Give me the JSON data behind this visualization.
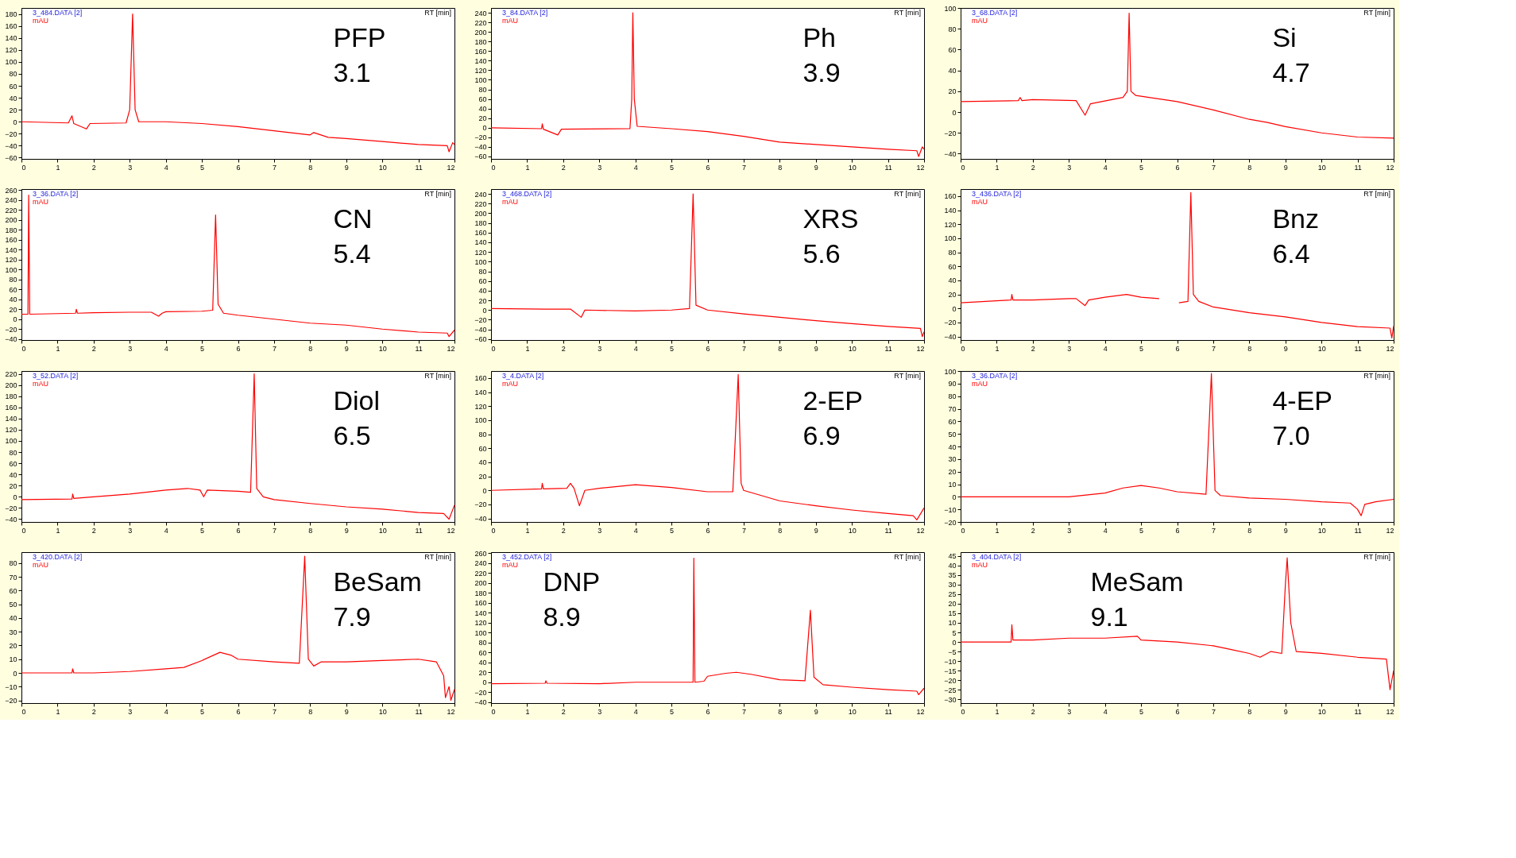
{
  "chart_data": [
    {
      "type": "line",
      "title": "3_484.DATA [2]",
      "ylabel": "mAU",
      "xlabel": "RT [min]",
      "annotations": [
        "PFP",
        "3.1"
      ],
      "xlim": [
        0,
        12
      ],
      "xticks": [
        0,
        1,
        2,
        3,
        4,
        5,
        6,
        7,
        8,
        9,
        10,
        11,
        12
      ],
      "ylim": [
        -62,
        190
      ],
      "yticks": [
        -60,
        -40,
        -20,
        0,
        20,
        40,
        60,
        80,
        100,
        120,
        140,
        160,
        180
      ],
      "grid": false,
      "series": [
        {
          "color": "#ff0000",
          "x": [
            0,
            1.3,
            1.4,
            1.45,
            1.8,
            1.9,
            2.9,
            3.0,
            3.08,
            3.15,
            3.25,
            4,
            5,
            6,
            7,
            8,
            8.1,
            8.5,
            9,
            10,
            11,
            11.8,
            11.85,
            11.95,
            12
          ],
          "values": [
            0,
            -2,
            10,
            -3,
            -12,
            -3,
            -2,
            20,
            180,
            20,
            0,
            0,
            -3,
            -8,
            -15,
            -22,
            -18,
            -26,
            -28,
            -33,
            -38,
            -40,
            -50,
            -35,
            -38
          ]
        }
      ]
    },
    {
      "type": "line",
      "title": "3_84.DATA [2]",
      "ylabel": "mAU",
      "xlabel": "RT [min]",
      "annotations": [
        "Ph",
        "3.9"
      ],
      "xlim": [
        0,
        12
      ],
      "xticks": [
        0,
        1,
        2,
        3,
        4,
        5,
        6,
        7,
        8,
        9,
        10,
        11,
        12
      ],
      "ylim": [
        -65,
        250
      ],
      "yticks": [
        -60,
        -40,
        -20,
        0,
        20,
        40,
        60,
        80,
        100,
        120,
        140,
        160,
        180,
        200,
        220,
        240
      ],
      "grid": false,
      "series": [
        {
          "color": "#ff0000",
          "x": [
            0,
            1.4,
            1.42,
            1.45,
            1.85,
            1.95,
            3.85,
            3.9,
            3.93,
            3.97,
            4.05,
            5,
            6,
            7,
            8,
            9,
            10,
            11,
            11.8,
            11.85,
            11.95,
            12
          ],
          "values": [
            0,
            -2,
            8,
            -3,
            -15,
            -3,
            -2,
            60,
            240,
            60,
            3,
            -2,
            -8,
            -18,
            -30,
            -35,
            -40,
            -45,
            -48,
            -60,
            -40,
            -45
          ]
        }
      ]
    },
    {
      "type": "line",
      "title": "3_68.DATA [2]",
      "ylabel": "mAU",
      "xlabel": "RT [min]",
      "annotations": [
        "Si",
        "4.7"
      ],
      "xlim": [
        0,
        12
      ],
      "xticks": [
        0,
        1,
        2,
        3,
        4,
        5,
        6,
        7,
        8,
        9,
        10,
        11,
        12
      ],
      "ylim": [
        -45,
        100
      ],
      "yticks": [
        -40,
        -20,
        0,
        20,
        40,
        60,
        80,
        100
      ],
      "grid": false,
      "series": [
        {
          "color": "#ff0000",
          "x": [
            0,
            1.6,
            1.65,
            1.7,
            2,
            3.2,
            3.45,
            3.6,
            4.5,
            4.62,
            4.67,
            4.72,
            4.85,
            6,
            7,
            8,
            8.5,
            9,
            10,
            11,
            12
          ],
          "values": [
            10,
            11,
            14,
            11,
            12,
            11,
            -3,
            8,
            14,
            20,
            95,
            20,
            16,
            10,
            2,
            -7,
            -10,
            -14,
            -20,
            -24,
            -25
          ]
        }
      ]
    },
    {
      "type": "line",
      "title": "3_36.DATA [2]",
      "ylabel": "mAU",
      "xlabel": "RT [min]",
      "annotations": [
        "CN",
        "5.4"
      ],
      "xlim": [
        0,
        12
      ],
      "xticks": [
        0,
        1,
        2,
        3,
        4,
        5,
        6,
        7,
        8,
        9,
        10,
        11,
        12
      ],
      "ylim": [
        -42,
        262
      ],
      "yticks": [
        -40,
        -20,
        0,
        20,
        40,
        60,
        80,
        100,
        120,
        140,
        160,
        180,
        200,
        220,
        240,
        260
      ],
      "grid": false,
      "series": [
        {
          "color": "#ff0000",
          "x": [
            0,
            0.18,
            0.2,
            0.23,
            1.5,
            1.52,
            1.55,
            2,
            3,
            3.6,
            3.8,
            3.9,
            4,
            5,
            5.3,
            5.38,
            5.45,
            5.6,
            6,
            7,
            8,
            9,
            10,
            11,
            11.8,
            11.85,
            12
          ],
          "values": [
            10,
            10,
            250,
            10,
            12,
            20,
            12,
            13,
            14,
            14,
            6,
            12,
            15,
            16,
            18,
            210,
            30,
            12,
            8,
            0,
            -8,
            -12,
            -20,
            -26,
            -28,
            -35,
            -22
          ]
        }
      ]
    },
    {
      "type": "line",
      "title": "3_468.DATA [2]",
      "ylabel": "mAU",
      "xlabel": "RT [min]",
      "annotations": [
        "XRS",
        "5.6"
      ],
      "xlim": [
        0,
        12
      ],
      "xticks": [
        0,
        1,
        2,
        3,
        4,
        5,
        6,
        7,
        8,
        9,
        10,
        11,
        12
      ],
      "ylim": [
        -62,
        250
      ],
      "yticks": [
        -60,
        -40,
        -20,
        0,
        20,
        40,
        60,
        80,
        100,
        120,
        140,
        160,
        180,
        200,
        220,
        240
      ],
      "grid": false,
      "series": [
        {
          "color": "#ff0000",
          "x": [
            0,
            1.5,
            1.8,
            2.2,
            2.5,
            2.6,
            4,
            5,
            5.5,
            5.6,
            5.68,
            6,
            7,
            8,
            9,
            10,
            11,
            11.9,
            11.95,
            12
          ],
          "values": [
            3,
            2,
            2,
            2,
            -15,
            0,
            -2,
            0,
            3,
            240,
            10,
            0,
            -8,
            -15,
            -22,
            -28,
            -34,
            -38,
            -55,
            -45
          ]
        }
      ]
    },
    {
      "type": "line",
      "title": "3_436.DATA [2]",
      "ylabel": "mAU",
      "xlabel": "RT [min]",
      "annotations": [
        "Bnz",
        "6.4"
      ],
      "xlim": [
        0,
        12
      ],
      "xticks": [
        0,
        1,
        2,
        3,
        4,
        5,
        6,
        7,
        8,
        9,
        10,
        11,
        12
      ],
      "ylim": [
        -45,
        170
      ],
      "yticks": [
        -40,
        -20,
        0,
        20,
        40,
        60,
        80,
        100,
        120,
        140,
        160
      ],
      "grid": false,
      "series": [
        {
          "color": "#ff0000",
          "x": [
            0,
            1.4,
            1.42,
            1.45,
            2,
            3,
            3.2,
            3.45,
            3.55,
            4,
            4.6,
            5,
            5.5,
            5.8,
            6.05,
            6.3,
            6.38,
            6.45,
            6.6,
            7,
            8,
            9,
            10,
            11,
            11.9,
            11.95,
            12
          ],
          "values": [
            8,
            12,
            20,
            12,
            12,
            14,
            14,
            4,
            12,
            16,
            20,
            16,
            14,
            null,
            8,
            10,
            165,
            20,
            10,
            2,
            -6,
            -12,
            -20,
            -26,
            -28,
            -42,
            -25
          ]
        }
      ]
    },
    {
      "type": "line",
      "title": "3_52.DATA [2]",
      "ylabel": "mAU",
      "xlabel": "RT [min]",
      "annotations": [
        "Diol",
        "6.5"
      ],
      "xlim": [
        0,
        12
      ],
      "xticks": [
        0,
        1,
        2,
        3,
        4,
        5,
        6,
        7,
        8,
        9,
        10,
        11,
        12
      ],
      "ylim": [
        -45,
        225
      ],
      "yticks": [
        -40,
        -20,
        0,
        20,
        40,
        60,
        80,
        100,
        120,
        140,
        160,
        180,
        200,
        220
      ],
      "grid": false,
      "series": [
        {
          "color": "#ff0000",
          "x": [
            0,
            1.4,
            1.42,
            1.45,
            2,
            3,
            4,
            4.6,
            4.95,
            5.05,
            5.15,
            6,
            6.35,
            6.45,
            6.52,
            6.7,
            7,
            8,
            9,
            10,
            11,
            11.7,
            11.85,
            12
          ],
          "values": [
            -5,
            -4,
            5,
            -3,
            0,
            5,
            12,
            15,
            12,
            0,
            12,
            10,
            8,
            220,
            15,
            0,
            -5,
            -12,
            -18,
            -22,
            -28,
            -30,
            -40,
            -15
          ]
        }
      ]
    },
    {
      "type": "line",
      "title": "3_4.DATA [2]",
      "ylabel": "mAU",
      "xlabel": "RT [min]",
      "annotations": [
        "2-EP",
        "6.9"
      ],
      "xlim": [
        0,
        12
      ],
      "xticks": [
        0,
        1,
        2,
        3,
        4,
        5,
        6,
        7,
        8,
        9,
        10,
        11,
        12
      ],
      "ylim": [
        -45,
        170
      ],
      "yticks": [
        -40,
        -20,
        0,
        20,
        40,
        60,
        80,
        100,
        120,
        140,
        160
      ],
      "grid": false,
      "series": [
        {
          "color": "#ff0000",
          "x": [
            0,
            1.4,
            1.42,
            1.45,
            2.1,
            2.2,
            2.3,
            2.45,
            2.6,
            3,
            4,
            5,
            6,
            6.7,
            6.85,
            6.93,
            7,
            8,
            9,
            10,
            11,
            11.7,
            11.8,
            12
          ],
          "values": [
            0,
            2,
            10,
            2,
            3,
            10,
            3,
            -22,
            0,
            3,
            8,
            4,
            -2,
            -2,
            165,
            10,
            0,
            -15,
            -22,
            -28,
            -33,
            -36,
            -42,
            -25
          ]
        }
      ]
    },
    {
      "type": "line",
      "title": "3_36.DATA [2]",
      "ylabel": "mAU",
      "xlabel": "RT [min]",
      "annotations": [
        "4-EP",
        "7.0"
      ],
      "xlim": [
        0,
        12
      ],
      "xticks": [
        0,
        1,
        2,
        3,
        4,
        5,
        6,
        7,
        8,
        9,
        10,
        11,
        12
      ],
      "ylim": [
        -20,
        100
      ],
      "yticks": [
        -20,
        -10,
        0,
        10,
        20,
        30,
        40,
        50,
        60,
        70,
        80,
        90,
        100
      ],
      "grid": false,
      "series": [
        {
          "color": "#ff0000",
          "x": [
            0,
            1,
            2,
            3,
            4,
            4.5,
            5,
            5.5,
            6,
            6.8,
            6.95,
            7.05,
            7.2,
            8,
            9,
            10,
            10.8,
            11,
            11.1,
            11.2,
            11.5,
            12
          ],
          "values": [
            0,
            0,
            0,
            0,
            3,
            7,
            9,
            7,
            4,
            2,
            98,
            5,
            1,
            -1,
            -2,
            -4,
            -5,
            -10,
            -15,
            -6,
            -4,
            -2
          ]
        }
      ]
    },
    {
      "type": "line",
      "title": "3_420.DATA [2]",
      "ylabel": "mAU",
      "xlabel": "RT [min]",
      "annotations": [
        "BeSam",
        "7.9"
      ],
      "xlim": [
        0,
        12
      ],
      "xticks": [
        0,
        1,
        2,
        3,
        4,
        5,
        6,
        7,
        8,
        9,
        10,
        11,
        12
      ],
      "ylim": [
        -22,
        88
      ],
      "yticks": [
        -20,
        -10,
        0,
        10,
        20,
        30,
        40,
        50,
        60,
        70,
        80
      ],
      "grid": false,
      "series": [
        {
          "color": "#ff0000",
          "x": [
            0,
            1.4,
            1.42,
            1.45,
            2,
            3,
            4,
            4.5,
            5,
            5.5,
            5.8,
            6,
            7,
            7.7,
            7.85,
            7.95,
            8.1,
            8.3,
            9,
            10,
            11,
            11.5,
            11.7,
            11.75,
            11.85,
            11.9,
            12
          ],
          "values": [
            0,
            0,
            3,
            0,
            0,
            1,
            3,
            4,
            9,
            15,
            13,
            10,
            8,
            7,
            85,
            10,
            5,
            8,
            8,
            9,
            10,
            8,
            -2,
            -18,
            -10,
            -20,
            -12
          ]
        }
      ]
    },
    {
      "type": "line",
      "title": "3_452.DATA [2]",
      "ylabel": "mAU",
      "xlabel": "RT [min]",
      "annotations": [
        "DNP",
        "8.9"
      ],
      "xlim": [
        0,
        12
      ],
      "xticks": [
        0,
        1,
        2,
        3,
        4,
        5,
        6,
        7,
        8,
        9,
        10,
        11,
        12
      ],
      "ylim": [
        -42,
        262
      ],
      "yticks": [
        -40,
        -20,
        0,
        20,
        40,
        60,
        80,
        100,
        120,
        140,
        160,
        180,
        200,
        220,
        240,
        260
      ],
      "grid": false,
      "series": [
        {
          "color": "#ff0000",
          "x": [
            0,
            1.5,
            1.52,
            1.55,
            3,
            4,
            5,
            5.6,
            5.62,
            5.65,
            5.9,
            6,
            6.5,
            6.8,
            7.2,
            8,
            8.7,
            8.85,
            8.95,
            9.2,
            10,
            11,
            11.8,
            11.85,
            12
          ],
          "values": [
            -3,
            -2,
            3,
            -2,
            -3,
            0,
            0,
            0,
            250,
            0,
            2,
            12,
            18,
            20,
            16,
            5,
            3,
            145,
            10,
            -5,
            -10,
            -15,
            -18,
            -25,
            -12
          ]
        }
      ]
    },
    {
      "type": "line",
      "title": "3_404.DATA [2]",
      "ylabel": "mAU",
      "xlabel": "RT [min]",
      "annotations": [
        "MeSam",
        "9.1"
      ],
      "xlim": [
        0,
        12
      ],
      "xticks": [
        0,
        1,
        2,
        3,
        4,
        5,
        6,
        7,
        8,
        9,
        10,
        11,
        12
      ],
      "ylim": [
        -32,
        47
      ],
      "yticks": [
        -30,
        -25,
        -20,
        -15,
        -10,
        -5,
        0,
        5,
        10,
        15,
        20,
        25,
        30,
        35,
        40,
        45
      ],
      "grid": false,
      "series": [
        {
          "color": "#ff0000",
          "x": [
            0,
            1.4,
            1.42,
            1.45,
            2,
            3,
            4,
            4.9,
            5,
            6,
            7,
            7.5,
            8,
            8.3,
            8.6,
            8.9,
            9.0,
            9.05,
            9.15,
            9.3,
            10,
            11,
            11.8,
            11.9,
            12
          ],
          "values": [
            0,
            0,
            9,
            1,
            1,
            2,
            2,
            3,
            1,
            0,
            -2,
            -4,
            -6,
            -8,
            -5,
            -6,
            30,
            44,
            10,
            -5,
            -6,
            -8,
            -9,
            -25,
            -15
          ]
        }
      ]
    }
  ]
}
